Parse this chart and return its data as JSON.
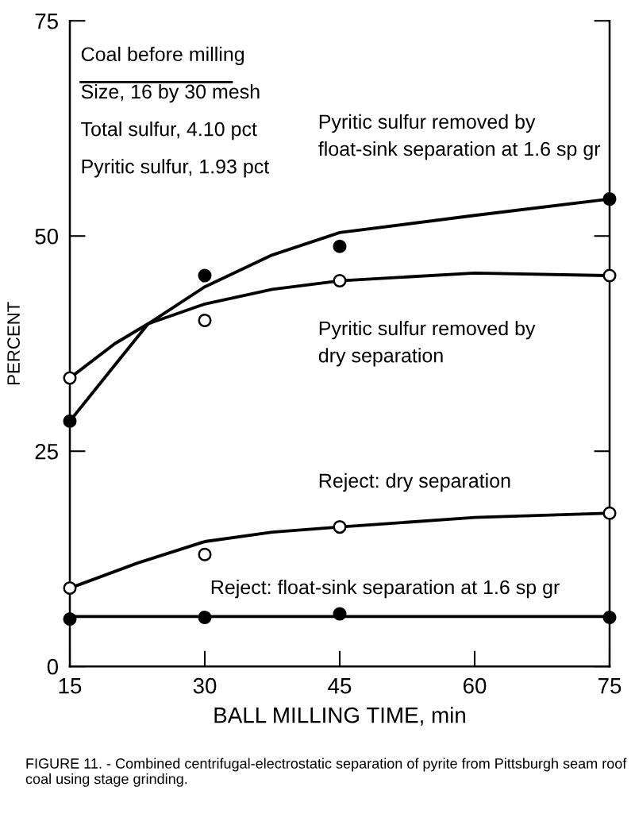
{
  "chart_data": {
    "type": "scatter",
    "xlabel": "BALL MILLING TIME, min",
    "ylabel": "PERCENT",
    "xlim": [
      15,
      75
    ],
    "xticks": [
      15,
      30,
      45,
      60,
      75
    ],
    "ylim": [
      0,
      75
    ],
    "yticks": [
      0,
      25,
      50,
      75
    ],
    "grid": false,
    "series": [
      {
        "marker": "circle",
        "color": "#000000",
        "x": [
          15,
          30,
          45,
          75
        ],
        "values": [
          28.5,
          45.4,
          48.8,
          54.3
        ]
      },
      {
        "type": "line",
        "marker": "none",
        "color": "#000000",
        "x": [
          15,
          20,
          23.7,
          30,
          37.5,
          45,
          60,
          75
        ],
        "values": [
          28.5,
          35,
          39.8,
          44.1,
          47.8,
          50.4,
          52.4,
          54.3
        ]
      },
      {
        "marker": "circle",
        "color": "#ffffff",
        "x": [
          15,
          30,
          45,
          75
        ],
        "values": [
          33.5,
          40.2,
          44.8,
          45.4
        ]
      },
      {
        "type": "line",
        "marker": "none",
        "color": "#000000",
        "x": [
          15,
          20,
          23.7,
          30,
          37.5,
          45,
          60,
          75
        ],
        "values": [
          33.5,
          37.5,
          39.8,
          42.1,
          43.8,
          44.8,
          45.7,
          45.4
        ]
      },
      {
        "marker": "circle",
        "color": "#ffffff",
        "x": [
          15,
          30,
          45,
          75
        ],
        "values": [
          9.1,
          13.0,
          16.2,
          17.8
        ]
      },
      {
        "type": "line",
        "marker": "none",
        "color": "#000000",
        "x": [
          15,
          22.5,
          30,
          37.5,
          45,
          60,
          75
        ],
        "values": [
          9.1,
          12.0,
          14.5,
          15.6,
          16.2,
          17.3,
          17.8
        ]
      },
      {
        "marker": "circle",
        "color": "#000000",
        "x": [
          15,
          30,
          45,
          75
        ],
        "values": [
          5.5,
          5.7,
          6.1,
          5.7
        ]
      },
      {
        "type": "line",
        "marker": "none",
        "color": "#000000",
        "x": [
          15,
          75
        ],
        "values": [
          5.8,
          5.8
        ]
      }
    ],
    "annotations": [
      "Coal before milling",
      "Size, 16 by 30 mesh",
      "Total sulfur, 4.10 pct",
      "Pyritic sulfur, 1.93 pct",
      "Pyritic sulfur removed by\nfloat-sink separation at 1.6 sp gr",
      "Pyritic sulfur removed by\ndry separation",
      "Reject: dry separation",
      "Reject: float-sink separation at 1.6 sp gr",
      "FIGURE 11. - Combined centrifugal-electrostatic separation of pyrite from Pittsburgh seam roof coal using stage grinding."
    ]
  }
}
